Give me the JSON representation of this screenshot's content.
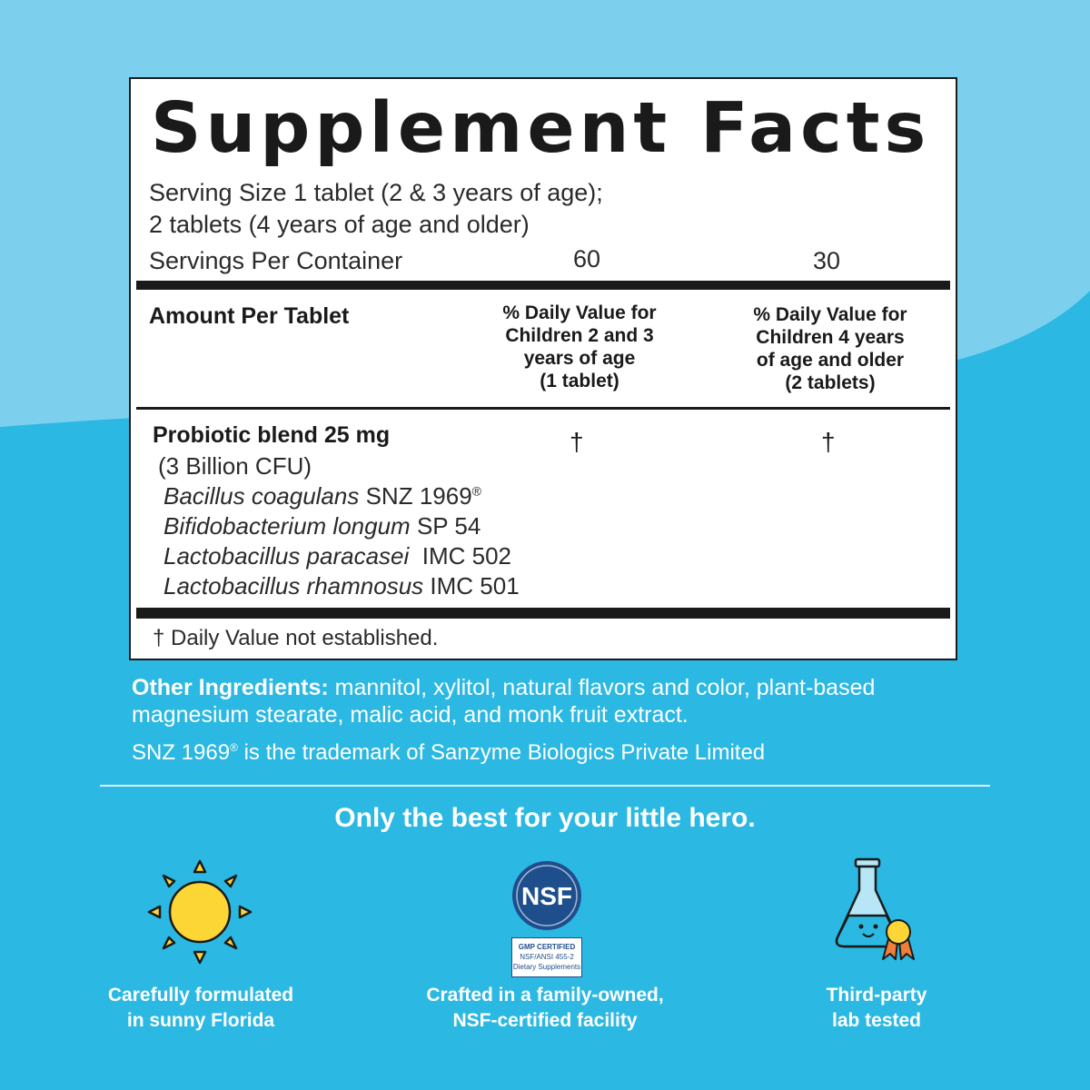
{
  "facts": {
    "title": "Supplement Facts",
    "serving_line1": "Serving Size 1 tablet (2 & 3 years of age);",
    "serving_line2": "2 tablets (4 years of age and older)",
    "servings_label": "Servings Per Container",
    "servings_col1": "60",
    "servings_col2": "30",
    "amount_header": "Amount Per Tablet",
    "col1_header": [
      "% Daily Value for",
      "Children 2 and 3",
      "years of age",
      "(1 tablet)"
    ],
    "col2_header": [
      "% Daily Value for",
      "Children 4 years",
      "of age and older",
      "(2 tablets)"
    ],
    "blend_name": "Probiotic blend 25 mg",
    "blend_cfu": "(3 Billion CFU)",
    "dv_symbol": "†",
    "strains": [
      {
        "species": "Bacillus coagulans",
        "code": "SNZ 1969",
        "mark": "®"
      },
      {
        "species": "Bifidobacterium longum",
        "code": "SP 54",
        "mark": ""
      },
      {
        "species": "Lactobacillus paracasei",
        "code": " IMC 502",
        "mark": ""
      },
      {
        "species": "Lactobacillus rhamnosus",
        "code": "IMC 501",
        "mark": ""
      }
    ],
    "footnote": "† Daily Value not established."
  },
  "other": {
    "ingredients_label": "Other Ingredients:",
    "ingredients_line1": " mannitol, xylitol, natural flavors and color, plant-based",
    "ingredients_line2": "magnesium stearate, malic acid, and monk fruit extract.",
    "trademark_code": "SNZ 1969",
    "trademark_mark": "®",
    "trademark_rest": " is the trademark of Sanzyme Biologics Private Limited"
  },
  "tagline": "Only the best for your little hero.",
  "features": [
    {
      "icon": "sun-icon",
      "line1": "Carefully formulated",
      "line2": "in sunny Florida"
    },
    {
      "icon": "nsf-icon",
      "line1": "Crafted in a family-owned,",
      "line2": "NSF-certified facility"
    },
    {
      "icon": "flask-icon",
      "line1": "Third-party",
      "line2": "lab tested"
    }
  ],
  "nsf": {
    "logo_text": "NSF",
    "cert_line1": "GMP CERTIFIED",
    "cert_line2": "NSF/ANSI 455-2",
    "cert_line3": "Dietary Supplements"
  },
  "colors": {
    "background_blue": "#2bb8e3",
    "light_blue": "#7cd0ee",
    "sun_yellow": "#fcd635",
    "nsf_navy": "#1e4e8c"
  }
}
